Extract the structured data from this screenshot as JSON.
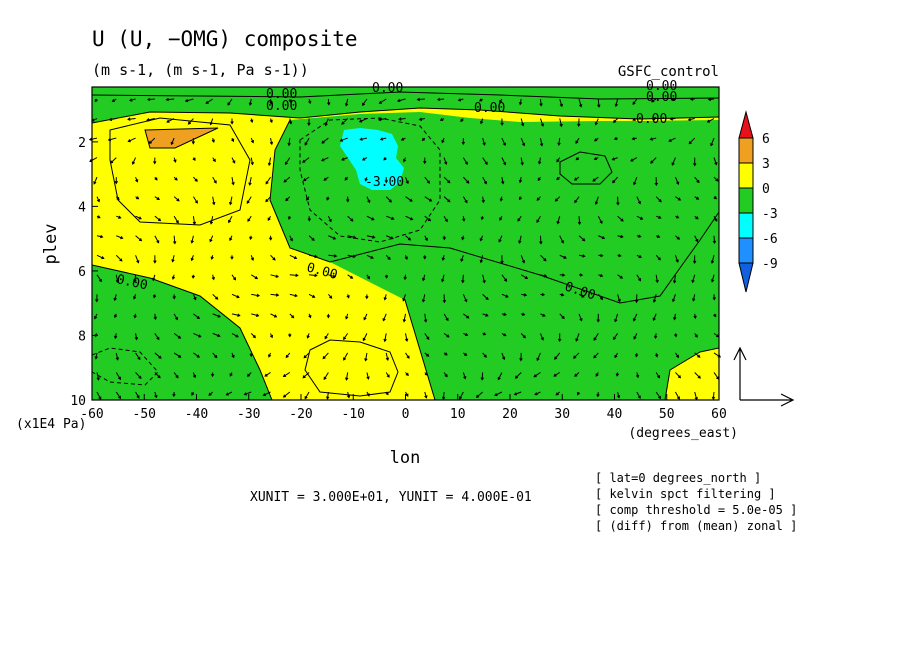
{
  "chart_data": {
    "type": "contour",
    "title": "U (U, −OMG) composite",
    "subtitle": "(m s-1, (m s-1, Pa s-1))",
    "run_label": "GSFC_control",
    "xlabel": "lon",
    "xunit_label": "(degrees_east)",
    "ylabel": "plev",
    "yunit_label": "(x1E4 Pa)",
    "x_ticks": [
      "-60",
      "-50",
      "-40",
      "-30",
      "-20",
      "-10",
      "0",
      "10",
      "20",
      "30",
      "40",
      "50",
      "60"
    ],
    "y_ticks": [
      "2",
      "4",
      "6",
      "8",
      "10"
    ],
    "xlim": [
      -60,
      60
    ],
    "ylim": [
      10,
      0.3
    ],
    "colorbar": {
      "levels": [
        "6",
        "3",
        "0",
        "-3",
        "-6",
        "-9"
      ],
      "colors": [
        "#e8101a",
        "#f0a020",
        "#ffff00",
        "#22cc22",
        "#00ffff",
        "#1e90ff",
        "#1060e0"
      ]
    },
    "contour_labels": [
      "0.00",
      "0.00",
      "0.00",
      "0.00",
      "0.00",
      "0.00",
      "0.00",
      "0.00",
      "0.00",
      "-3.00"
    ],
    "vector_unit_text": "XUNIT = 3.000E+01, YUNIT = 4.000E-01",
    "notes": [
      "[ lat=0 degrees_north ]",
      "[ kelvin spct filtering ]",
      "[ comp threshold = 5.0e-05 ]",
      "[ (diff) from (mean) zonal ]"
    ]
  }
}
